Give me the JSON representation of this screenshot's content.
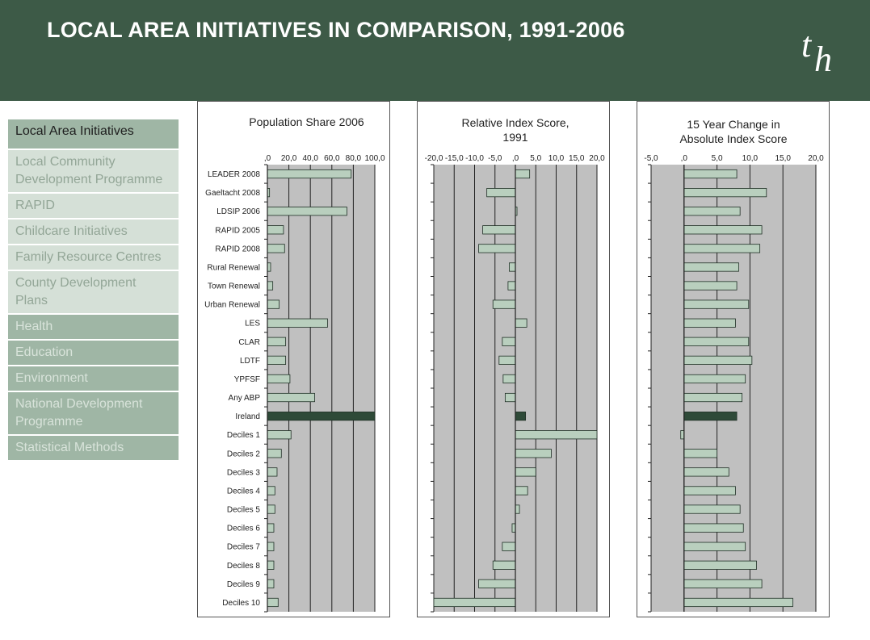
{
  "header": {
    "title": "LOCAL AREA INITIATIVES IN COMPARISON, 1991-2006",
    "logo_text": "th"
  },
  "colors": {
    "header_bg": "#3d5a47",
    "plot_bg": "#c0c0c0",
    "bar_fill": "#b9cfbe",
    "ireland_fill": "#2e4a38"
  },
  "nav": {
    "items": [
      {
        "label": "Local Area Initiatives",
        "state": "active"
      },
      {
        "label": "Local Community Development Programme",
        "state": "light"
      },
      {
        "label": "RAPID",
        "state": "light"
      },
      {
        "label": "Childcare Initiatives",
        "state": "light"
      },
      {
        "label": "Family Resource Centres",
        "state": "light"
      },
      {
        "label": "County Development Plans",
        "state": "light"
      },
      {
        "label": "Health",
        "state": "dark"
      },
      {
        "label": "Education",
        "state": "dark"
      },
      {
        "label": "Environment",
        "state": "dark"
      },
      {
        "label": "National Development Programme",
        "state": "dark"
      },
      {
        "label": "Statistical Methods",
        "state": "dark"
      }
    ]
  },
  "chart_data": [
    {
      "type": "bar",
      "orientation": "horizontal",
      "title": [
        "Population Share 2006"
      ],
      "categories": [
        "LEADER 2008",
        "Gaeltacht 2008",
        "LDSIP 2006",
        "RAPID 2005",
        "RAPID 2008",
        "Rural Renewal",
        "Town Renewal",
        "Urban Renewal",
        "LES",
        "CLAR",
        "LDTF",
        "YPFSF",
        "Any ABP",
        "Ireland",
        "Deciles 1",
        "Deciles 2",
        "Deciles 3",
        "Deciles 4",
        "Deciles 5",
        "Deciles 6",
        "Deciles 7",
        "Deciles 8",
        "Deciles 9",
        "Deciles 10"
      ],
      "values": [
        78,
        2,
        74,
        15,
        16,
        3,
        5,
        11,
        56,
        17,
        17,
        21,
        44,
        100,
        22,
        13,
        9,
        7,
        7,
        6,
        6,
        6,
        6,
        10
      ],
      "xlim": [
        0,
        100
      ],
      "ticks": [
        ",0",
        "20,0",
        "40,0",
        "60,0",
        "80,0",
        "100,0"
      ],
      "highlight": "Ireland",
      "grid": true
    },
    {
      "type": "bar",
      "orientation": "horizontal",
      "title": [
        "Relative Index Score,",
        "1991"
      ],
      "values": [
        3.5,
        -7,
        0.4,
        -8,
        -9,
        -1.5,
        -1.8,
        -5.5,
        2.8,
        -3.2,
        -4,
        -3,
        -2.5,
        2.5,
        20,
        8.8,
        5,
        3,
        1,
        -0.8,
        -3.2,
        -5.5,
        -9,
        -20
      ],
      "xlim": [
        -20,
        20
      ],
      "ticks": [
        "-20,0",
        "-15,0",
        "-10,0",
        "-5,0",
        ",0",
        "5,0",
        "10,0",
        "15,0",
        "20,0"
      ],
      "highlight": "Ireland",
      "grid": true
    },
    {
      "type": "bar",
      "orientation": "horizontal",
      "title": [
        "15 Year Change in",
        "Absolute Index Score"
      ],
      "values": [
        8,
        12.5,
        8.5,
        11.8,
        11.5,
        8.3,
        8,
        9.8,
        7.8,
        9.8,
        10.3,
        9.3,
        8.8,
        8,
        -0.5,
        5,
        6.8,
        7.8,
        8.5,
        9,
        9.3,
        11,
        11.8,
        16.5
      ],
      "xlim": [
        -5,
        20
      ],
      "ticks": [
        "-5,0",
        ",0",
        "5,0",
        "10,0",
        "15,0",
        "20,0"
      ],
      "highlight": "Ireland",
      "grid": true
    }
  ]
}
